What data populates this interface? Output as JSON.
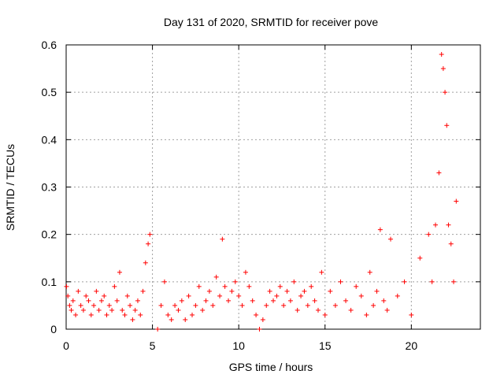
{
  "chart_data": {
    "type": "scatter",
    "title": "Day 131 of 2020, SRMTID for receiver pove",
    "xlabel": "GPS time / hours",
    "ylabel": "SRMTID / TECUs",
    "xlim": [
      0,
      24
    ],
    "ylim": [
      0,
      0.6
    ],
    "xticks": [
      0,
      5,
      10,
      15,
      20
    ],
    "xtick_labels": [
      "0",
      "5",
      "10",
      "15",
      "20"
    ],
    "yticks": [
      0,
      0.1,
      0.2,
      0.3,
      0.4,
      0.5,
      0.6
    ],
    "ytick_labels": [
      "0",
      "0.1",
      "0.2",
      "0.3",
      "0.4",
      "0.5",
      "0.6"
    ],
    "grid": true,
    "marker": "+",
    "color": "#ff0000",
    "series": [
      {
        "name": "SRMTID",
        "x": [
          0.02,
          0.1,
          0.2,
          0.3,
          0.4,
          0.55,
          0.7,
          0.85,
          1.0,
          1.15,
          1.3,
          1.45,
          1.6,
          1.75,
          1.9,
          2.05,
          2.2,
          2.35,
          2.5,
          2.65,
          2.8,
          2.95,
          3.1,
          3.25,
          3.4,
          3.55,
          3.7,
          3.85,
          4.0,
          4.15,
          4.3,
          4.45,
          4.6,
          4.75,
          4.85,
          5.3,
          5.5,
          5.7,
          5.9,
          6.1,
          6.3,
          6.5,
          6.7,
          6.9,
          7.1,
          7.3,
          7.5,
          7.7,
          7.9,
          8.1,
          8.3,
          8.5,
          8.7,
          8.9,
          9.05,
          9.2,
          9.4,
          9.6,
          9.8,
          10.0,
          10.2,
          10.4,
          10.6,
          10.8,
          11.0,
          11.2,
          11.4,
          11.6,
          11.8,
          12.0,
          12.2,
          12.4,
          12.6,
          12.8,
          13.0,
          13.2,
          13.4,
          13.6,
          13.8,
          14.0,
          14.2,
          14.4,
          14.6,
          14.8,
          15.0,
          15.3,
          15.6,
          15.9,
          16.2,
          16.5,
          16.8,
          17.1,
          17.4,
          17.6,
          17.8,
          18.0,
          18.2,
          18.4,
          18.6,
          18.8,
          19.2,
          19.6,
          20.0,
          20.5,
          21.0,
          21.2,
          21.4,
          21.6,
          21.75,
          21.85,
          21.95,
          22.05,
          22.15,
          22.3,
          22.45,
          22.6
        ],
        "y": [
          0.09,
          0.07,
          0.05,
          0.04,
          0.06,
          0.03,
          0.08,
          0.05,
          0.04,
          0.07,
          0.06,
          0.03,
          0.05,
          0.08,
          0.04,
          0.06,
          0.07,
          0.03,
          0.05,
          0.04,
          0.09,
          0.06,
          0.12,
          0.04,
          0.03,
          0.07,
          0.05,
          0.02,
          0.04,
          0.06,
          0.03,
          0.08,
          0.14,
          0.18,
          0.2,
          0.0,
          0.05,
          0.1,
          0.03,
          0.02,
          0.05,
          0.04,
          0.06,
          0.02,
          0.07,
          0.03,
          0.05,
          0.09,
          0.04,
          0.06,
          0.08,
          0.05,
          0.11,
          0.07,
          0.19,
          0.09,
          0.06,
          0.08,
          0.1,
          0.07,
          0.05,
          0.12,
          0.09,
          0.06,
          0.03,
          0.0,
          0.02,
          0.05,
          0.08,
          0.06,
          0.07,
          0.09,
          0.05,
          0.08,
          0.06,
          0.1,
          0.04,
          0.07,
          0.08,
          0.05,
          0.09,
          0.06,
          0.04,
          0.12,
          0.03,
          0.08,
          0.05,
          0.1,
          0.06,
          0.04,
          0.09,
          0.07,
          0.03,
          0.12,
          0.05,
          0.08,
          0.21,
          0.06,
          0.04,
          0.19,
          0.07,
          0.1,
          0.03,
          0.15,
          0.2,
          0.1,
          0.22,
          0.33,
          0.58,
          0.55,
          0.5,
          0.43,
          0.22,
          0.18,
          0.1,
          0.27
        ]
      }
    ]
  }
}
